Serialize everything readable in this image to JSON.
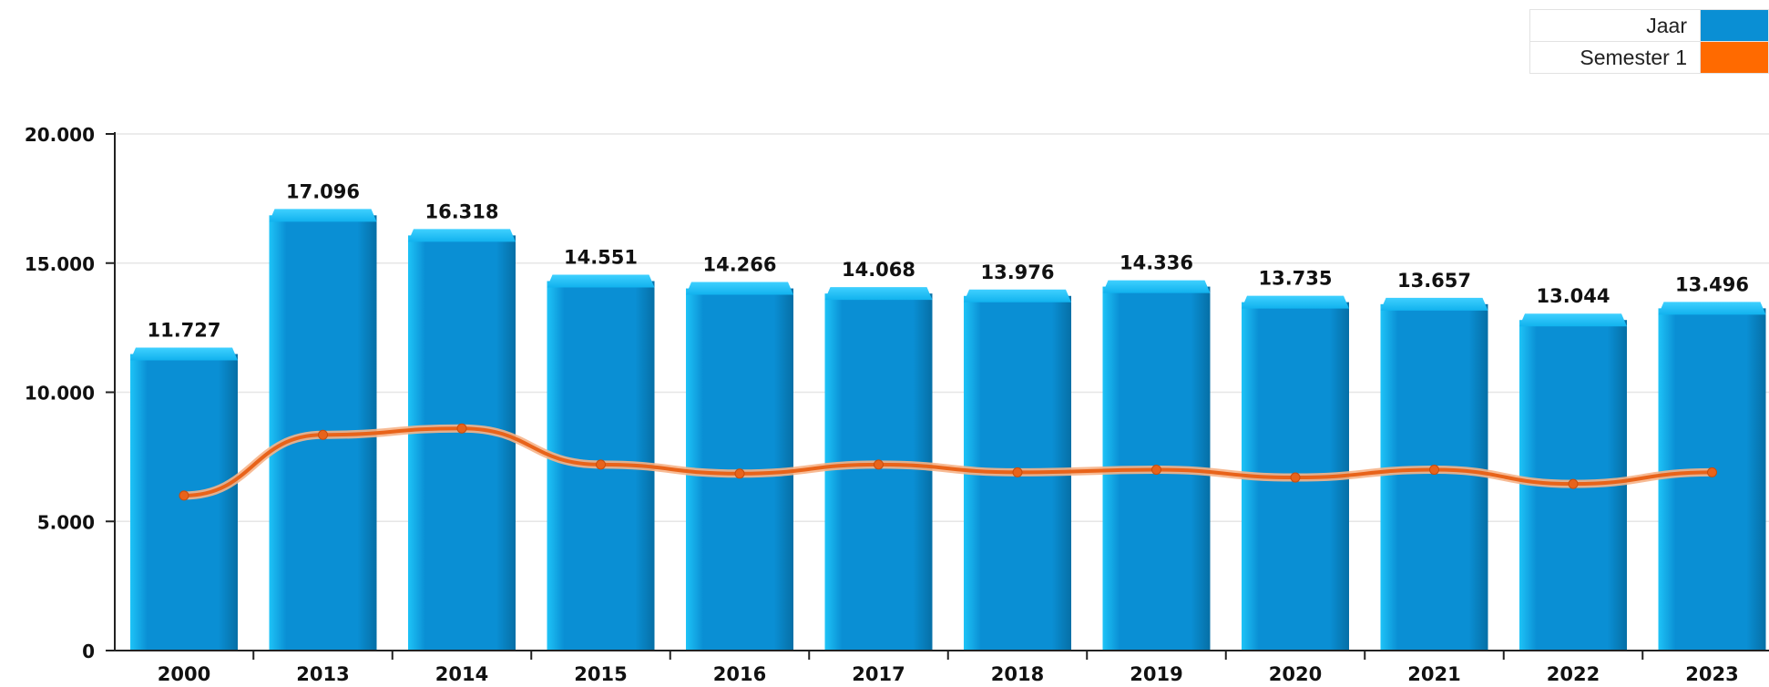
{
  "colors": {
    "bar": "#0a8fd4",
    "bar_light": "#1ec3f7",
    "bar_dark": "#066fa6",
    "line": "#e8631a",
    "grid": "#e6e6e6",
    "axis": "#222222"
  },
  "legend": [
    {
      "label": "Jaar",
      "color": "#0a8fd4"
    },
    {
      "label": "Semester 1",
      "color": "#ff6a00"
    }
  ],
  "chart_data": {
    "type": "bar",
    "title": "",
    "xlabel": "",
    "ylabel": "",
    "ylim": [
      0,
      20000
    ],
    "yticks": [
      0,
      5000,
      10000,
      15000,
      20000
    ],
    "ytick_labels": [
      "0",
      "5.000",
      "10.000",
      "15.000",
      "20.000"
    ],
    "grid": true,
    "legend_position": "top-right",
    "categories": [
      "2000",
      "2013",
      "2014",
      "2015",
      "2016",
      "2017",
      "2018",
      "2019",
      "2020",
      "2021",
      "2022",
      "2023"
    ],
    "series": [
      {
        "name": "Jaar",
        "type": "bar",
        "values": [
          11727,
          17096,
          16318,
          14551,
          14266,
          14068,
          13976,
          14336,
          13735,
          13657,
          13044,
          13496
        ],
        "labels": [
          "11.727",
          "17.096",
          "16.318",
          "14.551",
          "14.266",
          "14.068",
          "13.976",
          "14.336",
          "13.735",
          "13.657",
          "13.044",
          "13.496"
        ]
      },
      {
        "name": "Semester 1",
        "type": "line",
        "values": [
          6000,
          8350,
          8600,
          7200,
          6850,
          7200,
          6900,
          7000,
          6700,
          7000,
          6450,
          6900
        ]
      }
    ]
  }
}
